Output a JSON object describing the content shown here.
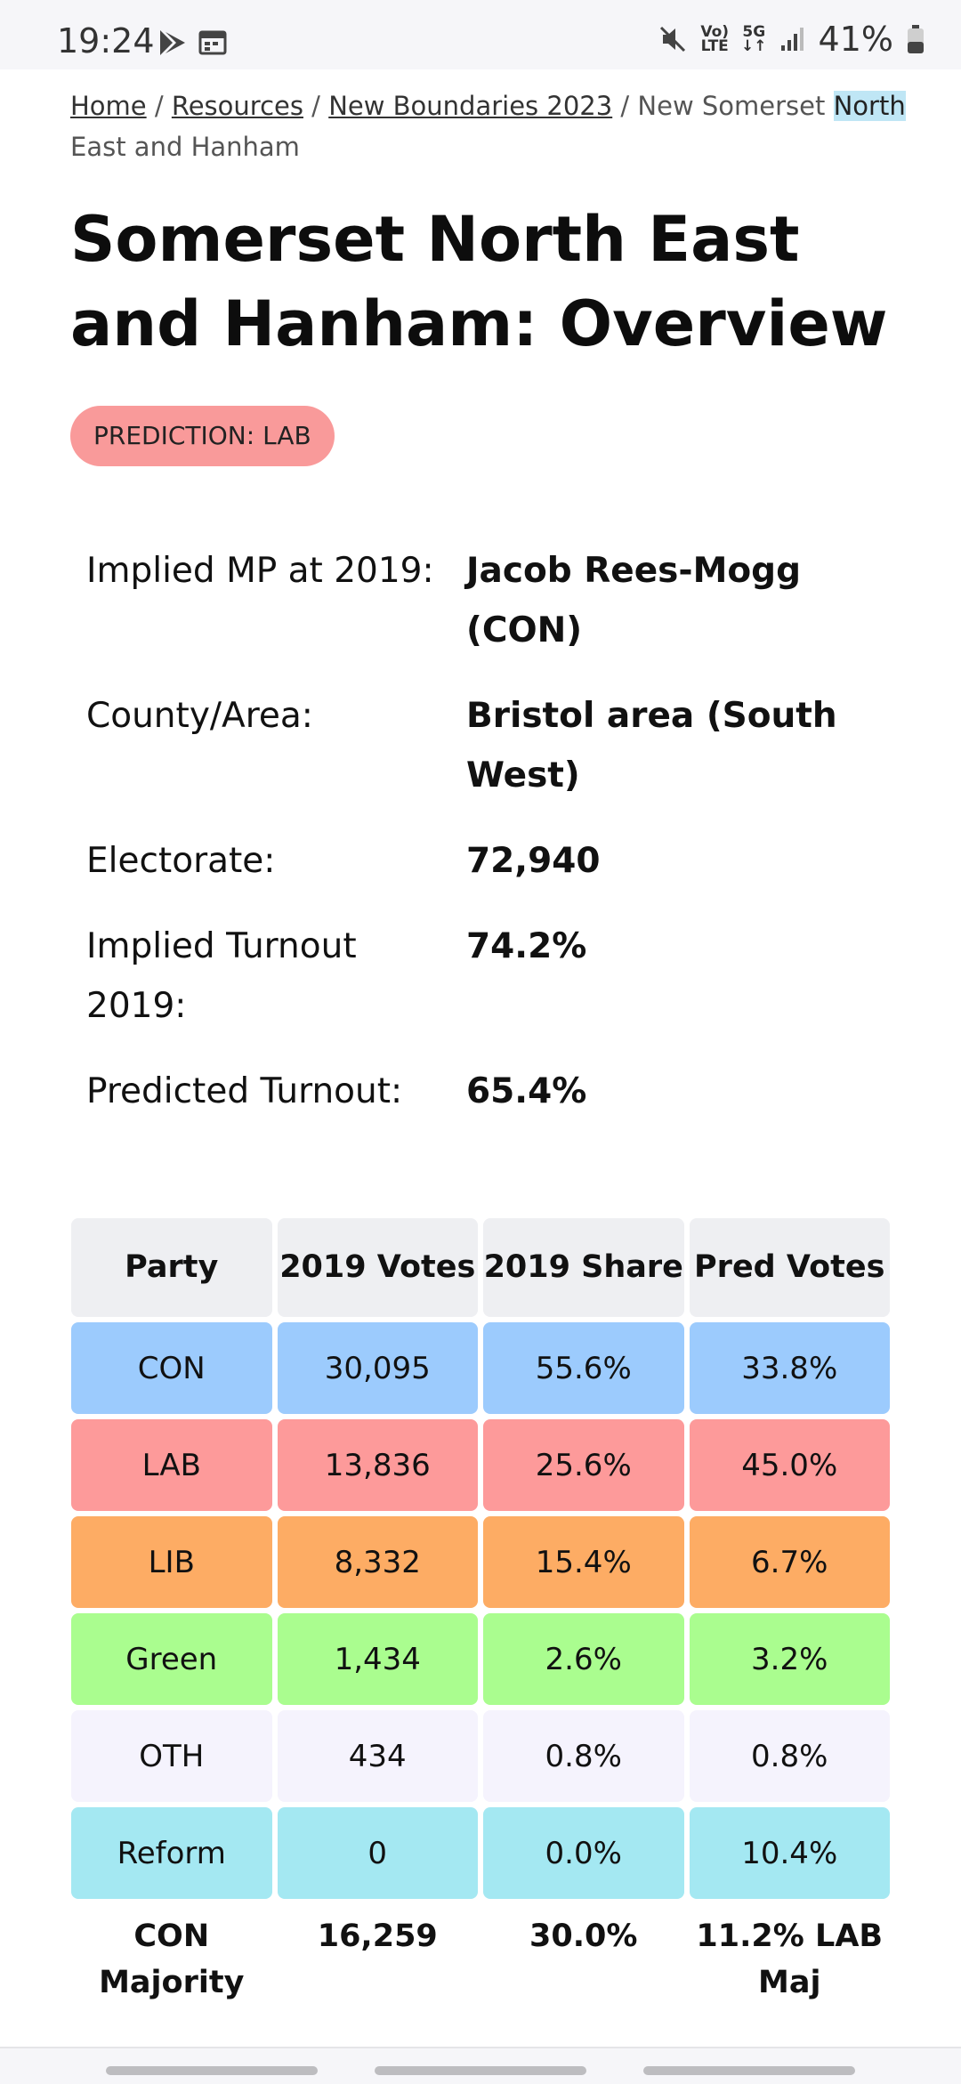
{
  "status_bar": {
    "time": "19:24",
    "network_top": "Vo)",
    "network_bottom": "LTE",
    "fiveg": "5G",
    "battery": "41%"
  },
  "breadcrumb": {
    "home": "Home",
    "sep": " / ",
    "resources": "Resources",
    "new_boundaries": "New Boundaries 2023",
    "current_pre": "New Somerset ",
    "current_hl": "North",
    "current_post": " East and Hanham"
  },
  "page": {
    "title": "Somerset North East and Hanham: Overview",
    "prediction": "PREDICTION: LAB"
  },
  "info": [
    {
      "label": "Implied MP at 2019:",
      "value": "Jacob Rees-Mogg  (CON)"
    },
    {
      "label": "County/Area:",
      "value": "Bristol area (South West)"
    },
    {
      "label": "Electorate:",
      "value": "72,940"
    },
    {
      "label": "Implied Turnout 2019:",
      "value": "74.2%"
    },
    {
      "label": "Predicted Turnout:",
      "value": "65.4%"
    }
  ],
  "table": {
    "headers": [
      "Party",
      "2019 Votes",
      "2019 Share",
      "Pred Votes"
    ],
    "rows": [
      {
        "party": "CON",
        "votes2019": "30,095",
        "share2019": "55.6%",
        "pred": "33.8%",
        "color": "#9ccbfd"
      },
      {
        "party": "LAB",
        "votes2019": "13,836",
        "share2019": "25.6%",
        "pred": "45.0%",
        "color": "#fd9a9a"
      },
      {
        "party": "LIB",
        "votes2019": "8,332",
        "share2019": "15.4%",
        "pred": "6.7%",
        "color": "#fdac64"
      },
      {
        "party": "Green",
        "votes2019": "1,434",
        "share2019": "2.6%",
        "pred": "3.2%",
        "color": "#aafd8f"
      },
      {
        "party": "OTH",
        "votes2019": "434",
        "share2019": "0.8%",
        "pred": "0.8%",
        "color": "#f5f3fd"
      },
      {
        "party": "Reform",
        "votes2019": "0",
        "share2019": "0.0%",
        "pred": "10.4%",
        "color": "#a4e8f2"
      }
    ],
    "footer": [
      "CON Majority",
      "16,259",
      "30.0%",
      "11.2% LAB Maj"
    ]
  }
}
